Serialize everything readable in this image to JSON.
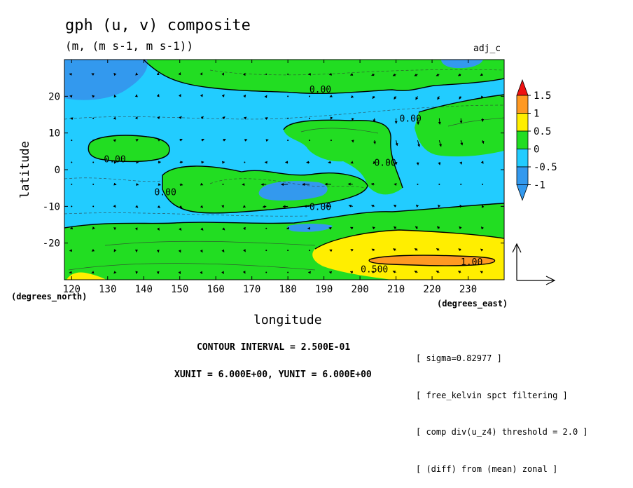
{
  "header": {
    "title": "gph (u, v) composite",
    "units": "(m, (m s-1, m s-1))",
    "tag": "adj_c"
  },
  "axes": {
    "ylabel": "latitude",
    "xlabel": "longitude",
    "xunit": "(degrees_east)",
    "yunit": "(degrees_north)"
  },
  "footer": {
    "contour_interval": "CONTOUR INTERVAL = 2.500E-01",
    "vector_units": "XUNIT = 6.000E+00, YUNIT = 6.000E+00"
  },
  "notes": [
    "[ sigma=0.82977 ]",
    "[ free_kelvin spct filtering ]",
    "[ comp div(u_z4) threshold = 2.0 ]",
    "[ (diff) from (mean) zonal ]"
  ],
  "colors": {
    "blue": "#3399ee",
    "cyan": "#22ccff",
    "green": "#22dd22",
    "yellow": "#ffee00",
    "orange": "#ff9922",
    "red": "#ee1111"
  },
  "chart_data": {
    "type": "heatmap",
    "title": "gph (u, v) composite",
    "subtitle": "(m, (m s-1, m s-1))",
    "xlabel": "longitude",
    "ylabel": "latitude",
    "xlim": [
      118,
      240
    ],
    "ylim": [
      -30,
      30
    ],
    "xticks": [
      120,
      130,
      140,
      150,
      160,
      170,
      180,
      190,
      200,
      210,
      220,
      230
    ],
    "yticks": [
      -20,
      -10,
      0,
      10,
      20
    ],
    "colorbar": {
      "levels": [
        -1,
        -0.5,
        0,
        0.5,
        1,
        1.5
      ],
      "tick_labels": [
        "1.5",
        "1",
        "0.5",
        "0",
        "-0.5",
        "-1"
      ],
      "bins": [
        {
          "range": "> 1.5",
          "color": "#ee1111"
        },
        {
          "range": "1 to 1.5",
          "color": "#ff9922"
        },
        {
          "range": "0.5 to 1",
          "color": "#ffee00"
        },
        {
          "range": "0 to 0.5",
          "color": "#22dd22"
        },
        {
          "range": "-0.5 to 0",
          "color": "#22ccff"
        },
        {
          "range": "-1 to -0.5",
          "color": "#3399ee"
        },
        {
          "range": "< -1",
          "color": "#3399ee"
        }
      ]
    },
    "contour_labels": [
      {
        "text": "0.00",
        "lon": 189,
        "lat": 22
      },
      {
        "text": "0.00",
        "lon": 214,
        "lat": 14
      },
      {
        "text": "0.00",
        "lon": 132,
        "lat": 3
      },
      {
        "text": "0.00",
        "lon": 207,
        "lat": 2
      },
      {
        "text": "0.00",
        "lon": 146,
        "lat": -6
      },
      {
        "text": "0.00",
        "lon": 189,
        "lat": -10
      },
      {
        "text": "0.500",
        "lon": 204,
        "lat": -27
      },
      {
        "text": "1.00",
        "lon": 231,
        "lat": -25
      }
    ],
    "grid": false,
    "legend_position": "right"
  }
}
